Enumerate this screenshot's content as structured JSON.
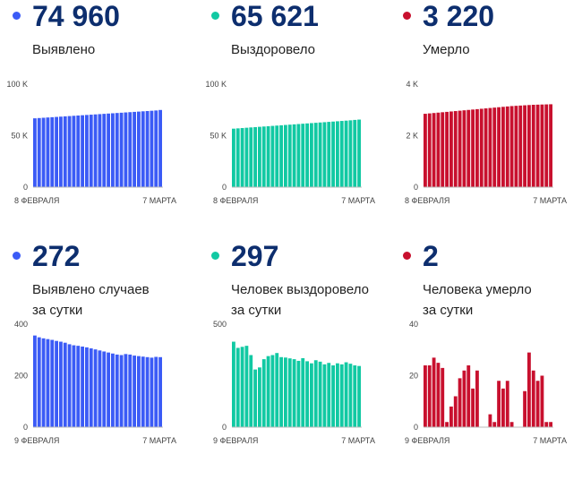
{
  "colors": {
    "blue": "#3b5bf6",
    "teal": "#11c9a3",
    "red": "#c8102e",
    "number": "#0d2e6e"
  },
  "panels": [
    {
      "number": "74 960",
      "label_lines": [
        "Выявлено"
      ],
      "color": "#3b5bf6",
      "chart_data": {
        "type": "bar",
        "x_start_label": "8 ФЕВРАЛЯ",
        "x_end_label": "7 МАРТА",
        "y_ticks": [
          "100 K",
          "50 K",
          "0"
        ],
        "ylim": [
          0,
          100000
        ],
        "values": [
          66850,
          67122,
          67394,
          67666,
          67938,
          68210,
          68482,
          68754,
          69026,
          69298,
          69570,
          69842,
          70114,
          70386,
          70658,
          70930,
          71202,
          71474,
          71746,
          72018,
          72290,
          72562,
          72834,
          73106,
          73378,
          73650,
          73922,
          74194,
          74466,
          74960
        ]
      }
    },
    {
      "number": "65 621",
      "label_lines": [
        "Выздоровело"
      ],
      "color": "#11c9a3",
      "chart_data": {
        "type": "bar",
        "x_start_label": "8 ФЕВРАЛЯ",
        "x_end_label": "7 МАРТА",
        "y_ticks": [
          "100 K",
          "50 K",
          "0"
        ],
        "ylim": [
          0,
          100000
        ],
        "values": [
          56800,
          57100,
          57400,
          57700,
          58000,
          58300,
          58600,
          58900,
          59200,
          59500,
          59800,
          60100,
          60400,
          60700,
          61000,
          61300,
          61600,
          61900,
          62200,
          62500,
          62800,
          63100,
          63400,
          63700,
          64000,
          64300,
          64600,
          64900,
          65300,
          65621
        ]
      }
    },
    {
      "number": "3 220",
      "label_lines": [
        "Умерло"
      ],
      "color": "#c8102e",
      "chart_data": {
        "type": "bar",
        "x_start_label": "8 ФЕВРАЛЯ",
        "x_end_label": "7 МАРТА",
        "y_ticks": [
          "4 K",
          "2 K",
          "0"
        ],
        "ylim": [
          0,
          4000
        ],
        "values": [
          2850,
          2865,
          2880,
          2895,
          2910,
          2925,
          2940,
          2955,
          2970,
          2985,
          3000,
          3015,
          3030,
          3045,
          3060,
          3075,
          3090,
          3105,
          3120,
          3135,
          3150,
          3160,
          3170,
          3180,
          3190,
          3200,
          3205,
          3210,
          3215,
          3220
        ]
      }
    },
    {
      "number": "272",
      "label_lines": [
        "Выявлено случаев",
        "за сутки"
      ],
      "color": "#3b5bf6",
      "chart_data": {
        "type": "bar",
        "x_start_label": "9 ФЕВРАЛЯ",
        "x_end_label": "7 МАРТА",
        "y_ticks": [
          "400",
          "200",
          "0"
        ],
        "ylim": [
          0,
          400
        ],
        "values": [
          356,
          349,
          345,
          342,
          339,
          335,
          332,
          328,
          322,
          318,
          316,
          313,
          310,
          306,
          302,
          298,
          294,
          290,
          286,
          282,
          280,
          284,
          282,
          278,
          276,
          274,
          272,
          270,
          273,
          272
        ]
      }
    },
    {
      "number": "297",
      "label_lines": [
        "Человек выздоровело",
        "за сутки"
      ],
      "color": "#11c9a3",
      "chart_data": {
        "type": "bar",
        "x_start_label": "9 ФЕВРАЛЯ",
        "x_end_label": "7 МАРТА",
        "y_ticks": [
          "500",
          "0"
        ],
        "ylim": [
          0,
          500
        ],
        "values": [
          415,
          385,
          390,
          395,
          350,
          280,
          290,
          330,
          345,
          350,
          360,
          340,
          338,
          334,
          330,
          322,
          335,
          320,
          310,
          325,
          318,
          305,
          312,
          300,
          310,
          305,
          315,
          308,
          300,
          297
        ]
      }
    },
    {
      "number": "2",
      "label_lines": [
        "Человека умерло",
        "за сутки"
      ],
      "color": "#c8102e",
      "chart_data": {
        "type": "bar",
        "x_start_label": "9 ФЕВРАЛЯ",
        "x_end_label": "7 МАРТА",
        "y_ticks": [
          "40",
          "20",
          "0"
        ],
        "ylim": [
          0,
          40
        ],
        "values": [
          24,
          24,
          27,
          25,
          23,
          2,
          8,
          12,
          19,
          22,
          24,
          15,
          22,
          0,
          0,
          5,
          2,
          18,
          15,
          18,
          2,
          0,
          0,
          14,
          29,
          22,
          18,
          20,
          2,
          2
        ]
      }
    }
  ]
}
